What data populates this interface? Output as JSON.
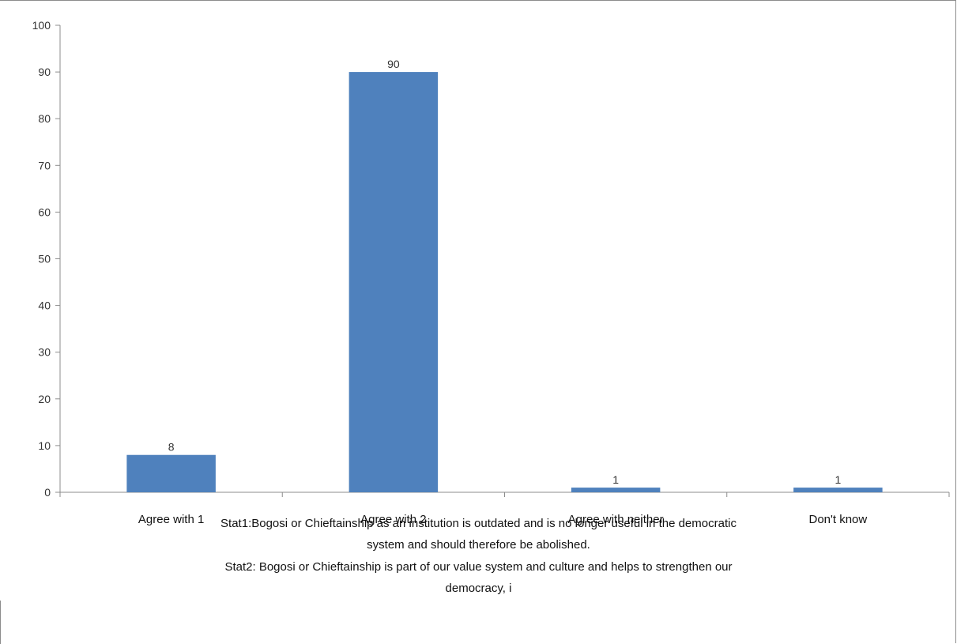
{
  "chart_data": {
    "type": "bar",
    "categories": [
      "Agree with 1",
      "Agree with 2",
      "Agree with neither",
      "Don't know"
    ],
    "values": [
      8,
      90,
      1,
      1
    ],
    "data_labels": [
      "8",
      "90",
      "1",
      "1"
    ],
    "xlabel_lines": [
      "Stat1:Bogosi or Chieftainship as an institution is outdated and is no longer useful in the democratic",
      "system and should therefore be abolished.",
      "Stat2: Bogosi or Chieftainship is part of our value system and culture and helps to strengthen our",
      "democracy, i"
    ],
    "ylim": [
      0,
      100
    ],
    "yticks": [
      0,
      10,
      20,
      30,
      40,
      50,
      60,
      70,
      80,
      90,
      100
    ],
    "grid": false,
    "legend": "none",
    "bar_color": "#4f81bd"
  }
}
